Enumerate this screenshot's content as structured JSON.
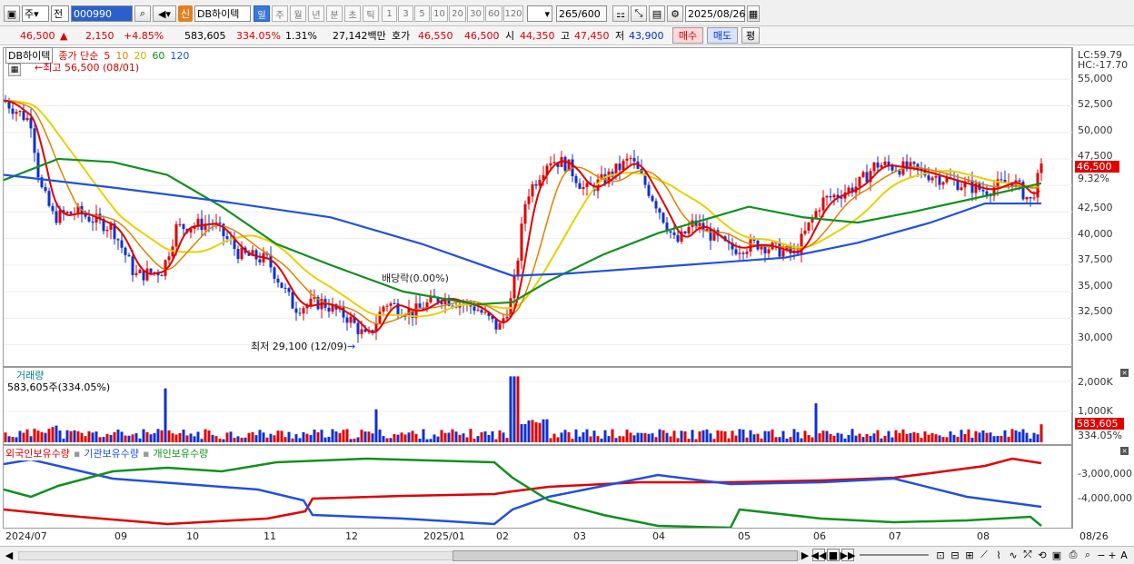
{
  "toolbar": {
    "market": "주",
    "compare": "전",
    "code": "000990",
    "stock_name": "DB하이텍",
    "credit_badge": "신",
    "periods": [
      "일",
      "주",
      "월",
      "년",
      "분",
      "초",
      "틱"
    ],
    "minutes": [
      "1",
      "3",
      "5",
      "10",
      "20",
      "30",
      "60",
      "120"
    ],
    "count": "265",
    "count_max": "/600",
    "date": "2025/08/26"
  },
  "quote": {
    "price": "46,500",
    "arrow": "▲",
    "change": "2,150",
    "change_pct": "+4.85%",
    "volume": "583,605",
    "vol_ratio": "334.05%",
    "turnover": "1.31%",
    "amount": "27,142백만",
    "ask_label": "호가",
    "ask1": "46,550",
    "ask2": "46,500",
    "open_label": "시",
    "open": "44,350",
    "high_label": "고",
    "high": "47,450",
    "low_label": "저",
    "low": "43,900",
    "buy": "매수",
    "sell": "매도",
    "eval": "평"
  },
  "price_panel": {
    "stock_tag": "DB하이텍",
    "legend_prefix": "종가 단순",
    "ma_periods": [
      "5",
      "10",
      "20",
      "60",
      "120"
    ],
    "ma_colors": [
      "#e00000",
      "#e08000",
      "#e8d000",
      "#10901e",
      "#2050e0"
    ],
    "high_note": "최고 56,500 (08/01)",
    "low_note": "최저 29,100 (12/09)",
    "div_note": "배당락(0.00%)",
    "lc": "LC:59.79",
    "hc": "HC:-17.70",
    "current": "46,500",
    "current_pct": "9.32%",
    "yticks": [
      "55,000",
      "52,500",
      "50,000",
      "47,500",
      "45,000",
      "42,500",
      "40,000",
      "37,500",
      "35,000",
      "32,500",
      "30,000"
    ]
  },
  "volume_panel": {
    "title": "거래량",
    "summary": "583,605주(334.05%)",
    "yticks": [
      "2,000K",
      "1,000K"
    ],
    "current": "583,605",
    "current_pct": "334.05%"
  },
  "holding_panel": {
    "legend": [
      "외국인보유수량",
      "기관보유수량",
      "개인보유수량"
    ],
    "colors": [
      "#e00000",
      "#2050e0",
      "#10901e"
    ],
    "yticks": [
      "-3,000,000",
      "-4,000,000"
    ]
  },
  "xaxis": [
    "2024/07",
    "09",
    "10",
    "11",
    "12",
    "2025/01",
    "02",
    "03",
    "04",
    "05",
    "06",
    "07",
    "08",
    "08/26"
  ],
  "chart_data": {
    "type": "candlestick",
    "title": "DB하이텍",
    "ylim": [
      28000,
      57500
    ],
    "x": [
      "2024/07",
      "09",
      "10",
      "11",
      "12",
      "2025/01",
      "02",
      "03",
      "04",
      "05",
      "06",
      "07",
      "08",
      "08/26"
    ],
    "close_approx": [
      52000,
      37000,
      40000,
      37000,
      31000,
      34000,
      34000,
      47000,
      43000,
      39000,
      43000,
      46500,
      45000,
      46500
    ],
    "series": [
      {
        "name": "5",
        "values": [
          52000,
          37000,
          40500,
          36500,
          31000,
          34000,
          33500,
          47000,
          43500,
          39000,
          43500,
          46500,
          45000,
          44000
        ]
      },
      {
        "name": "120",
        "values": [
          46000,
          44500,
          43500,
          42500,
          40500,
          39000,
          36500,
          36800,
          37500,
          38000,
          39000,
          42000,
          43500,
          43500
        ]
      }
    ]
  }
}
